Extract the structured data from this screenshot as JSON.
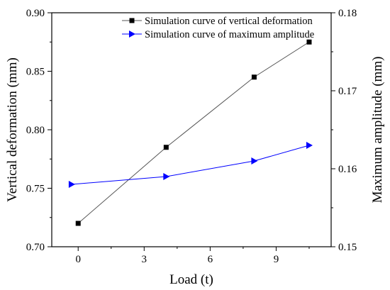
{
  "chart_data": {
    "type": "line",
    "x": [
      0,
      4,
      8,
      10.5
    ],
    "xlabel": "Load (t)",
    "xlim": [
      -1.2,
      11.5
    ],
    "xticks": [
      0,
      3,
      6,
      9
    ],
    "xtick_labels": [
      "0",
      "3",
      "6",
      "9"
    ],
    "ylabel_left": "Vertical deformation (mm)",
    "ylim_left": [
      0.7,
      0.9
    ],
    "yticks_left": [
      0.7,
      0.75,
      0.8,
      0.85,
      0.9
    ],
    "ytick_labels_left": [
      "0.70",
      "0.75",
      "0.80",
      "0.85",
      "0.90"
    ],
    "ylabel_right": "Maximum amplitude (mm)",
    "ylim_right": [
      0.15,
      0.18
    ],
    "yticks_right": [
      0.15,
      0.16,
      0.17,
      0.18
    ],
    "ytick_labels_right": [
      "0.15",
      "0.16",
      "0.17",
      "0.18"
    ],
    "grid": false,
    "legend_position": "top-right",
    "series": [
      {
        "name": "Simulation curve of vertical deformation",
        "axis": "left",
        "x": [
          0,
          4,
          8,
          10.5
        ],
        "values": [
          0.72,
          0.785,
          0.845,
          0.875
        ],
        "color": "#555555",
        "marker": "square",
        "marker_color": "#000000"
      },
      {
        "name": "Simulation curve of maximum amplitude",
        "axis": "right",
        "x": [
          -0.3,
          4,
          8,
          10.5
        ],
        "values": [
          0.158,
          0.159,
          0.161,
          0.163
        ],
        "color": "#0000ff",
        "marker": "triangle-right",
        "marker_color": "#0000ff"
      }
    ]
  }
}
